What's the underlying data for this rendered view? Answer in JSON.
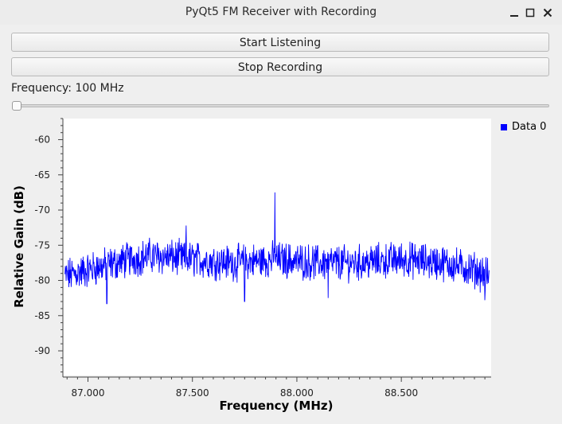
{
  "window": {
    "title": "PyQt5 FM Receiver with Recording",
    "controls": {
      "minimize_icon": "minimize-icon",
      "maximize_icon": "maximize-icon",
      "close_icon": "close-icon"
    }
  },
  "controls": {
    "start_label": "Start Listening",
    "stop_label": "Stop Recording",
    "frequency_label": "Frequency: 100 MHz",
    "slider_value": 0
  },
  "colors": {
    "series": "#0000ff",
    "plot_bg": "#ffffff",
    "window_bg": "#efefef"
  },
  "chart_data": {
    "type": "line",
    "title": "",
    "xlabel": "Frequency (MHz)",
    "ylabel": "Relative Gain (dB)",
    "xlim": [
      86.88,
      88.93
    ],
    "ylim": [
      -93.5,
      -57
    ],
    "xticks": [
      87.0,
      87.5,
      88.0,
      88.5
    ],
    "xtick_labels": [
      "87.000",
      "87.500",
      "88.000",
      "88.500"
    ],
    "yticks": [
      -60,
      -65,
      -70,
      -75,
      -80,
      -85,
      -90
    ],
    "ytick_labels": [
      "-60",
      "-65",
      "-70",
      "-75",
      "-80",
      "-85",
      "-90"
    ],
    "legend": {
      "position": "top-right",
      "entries": [
        "Data 0"
      ]
    },
    "grid": false,
    "series": [
      {
        "name": "Data 0",
        "noise_floor": [
          [
            86.88,
            -79.5
          ],
          [
            87.0,
            -78.5
          ],
          [
            87.2,
            -77.0
          ],
          [
            87.3,
            -76.5
          ],
          [
            87.5,
            -77.0
          ],
          [
            87.7,
            -77.5
          ],
          [
            87.9,
            -77.0
          ],
          [
            88.1,
            -77.5
          ],
          [
            88.3,
            -77.5
          ],
          [
            88.5,
            -77.0
          ],
          [
            88.7,
            -77.5
          ],
          [
            88.85,
            -78.5
          ],
          [
            88.93,
            -79.5
          ]
        ],
        "peaks": [
          {
            "x": 87.47,
            "y": -72.2
          },
          {
            "x": 87.895,
            "y": -67.5
          }
        ],
        "dips": [
          {
            "x": 87.09,
            "y": -83.3
          },
          {
            "x": 87.75,
            "y": -83.0
          },
          {
            "x": 88.15,
            "y": -82.5
          },
          {
            "x": 88.9,
            "y": -82.8
          }
        ]
      }
    ]
  }
}
